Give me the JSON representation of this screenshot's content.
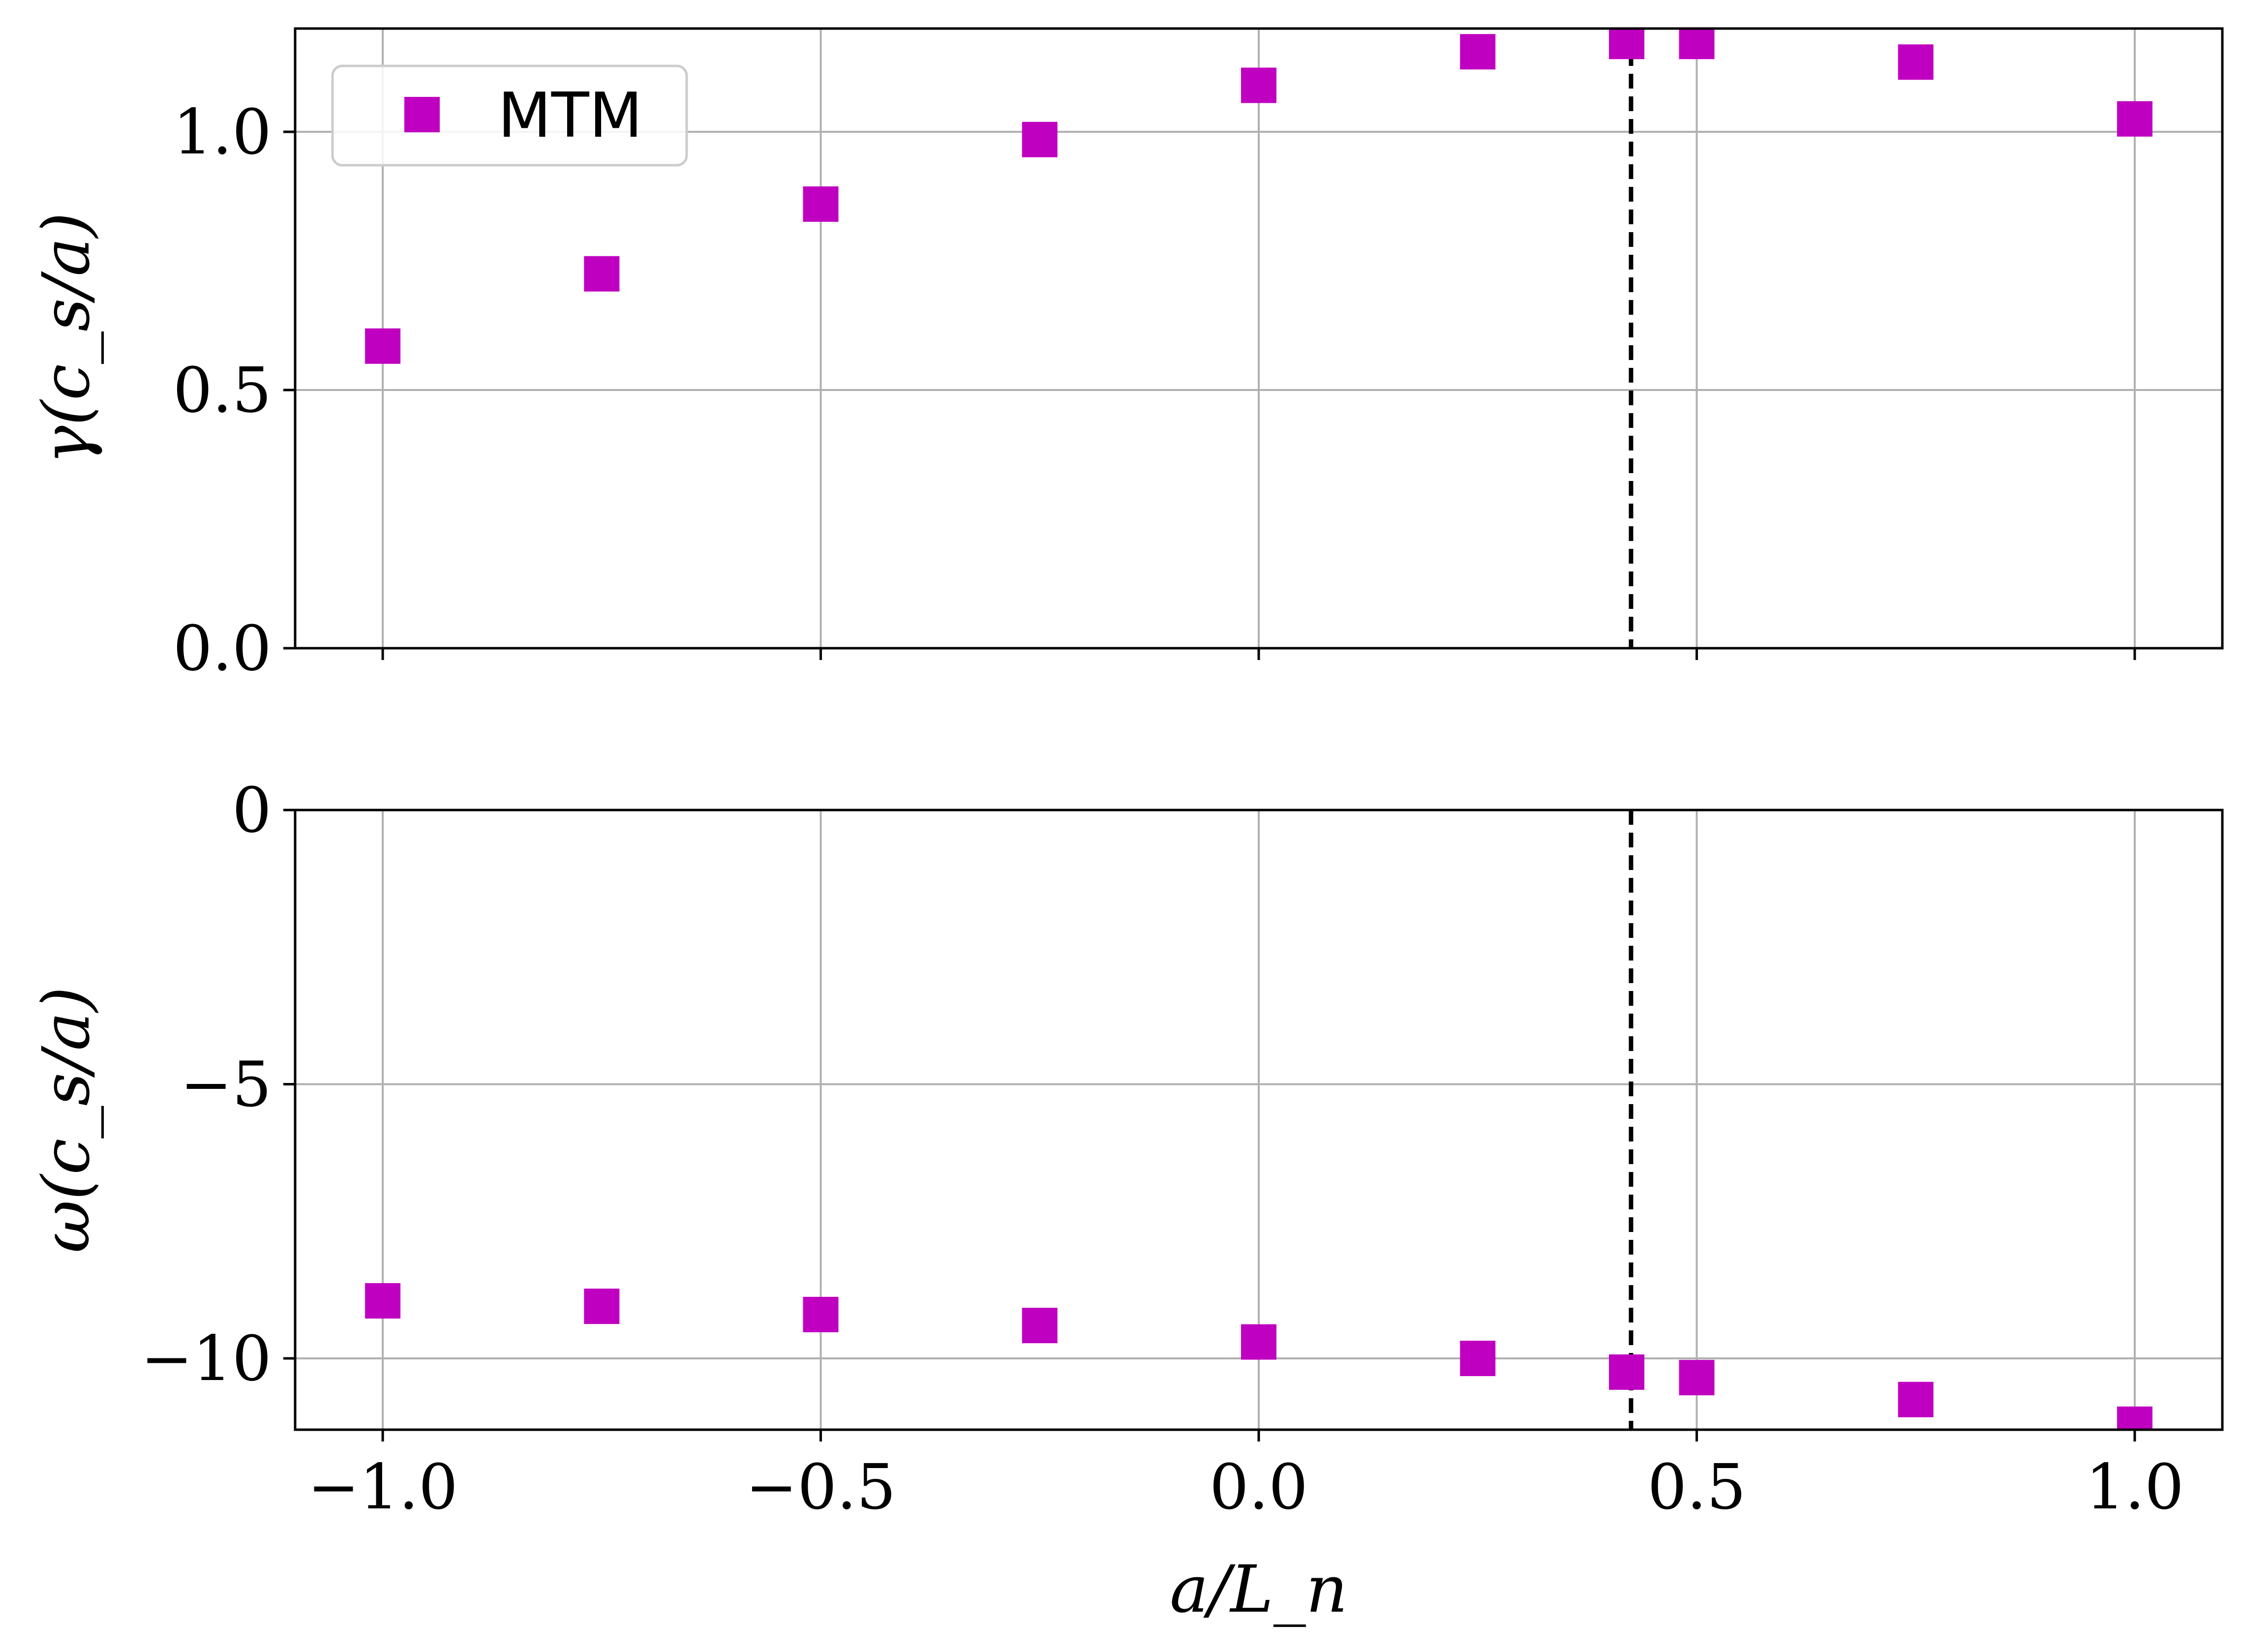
{
  "chart_data": [
    {
      "type": "scatter",
      "panel": "top",
      "xlabel": "",
      "ylabel": "γ(c_s/a)",
      "xlim": [
        -1.1,
        1.1
      ],
      "ylim": [
        0.0,
        1.2
      ],
      "xticks": [
        -1.0,
        -0.5,
        0.0,
        0.5,
        1.0
      ],
      "yticks": [
        0.0,
        0.5,
        1.0
      ],
      "ytick_labels": [
        "0.0",
        "0.5",
        "1.0"
      ],
      "grid": true,
      "legend_position": "top-left",
      "vline": {
        "x": 0.425,
        "style": "dashed",
        "color": "#000000"
      },
      "series": [
        {
          "name": "MTM",
          "marker": "square",
          "color": "#c000c0",
          "x": [
            -1.0,
            -0.75,
            -0.5,
            -0.25,
            0.0,
            0.25,
            0.42,
            0.5,
            0.75,
            1.0
          ],
          "y": [
            0.585,
            0.725,
            0.86,
            0.985,
            1.09,
            1.155,
            1.175,
            1.175,
            1.135,
            1.025
          ]
        }
      ]
    },
    {
      "type": "scatter",
      "panel": "bottom",
      "xlabel": "a/L_n",
      "ylabel": "ω(c_s/a)",
      "xlim": [
        -1.1,
        1.1
      ],
      "ylim": [
        -11.3,
        0.0
      ],
      "xticks": [
        -1.0,
        -0.5,
        0.0,
        0.5,
        1.0
      ],
      "xtick_labels": [
        "−1.0",
        "−0.5",
        "0.0",
        "0.5",
        "1.0"
      ],
      "yticks": [
        0,
        -5,
        -10
      ],
      "ytick_labels": [
        "0",
        "−5",
        "−10"
      ],
      "grid": true,
      "vline": {
        "x": 0.425,
        "style": "dashed",
        "color": "#000000"
      },
      "series": [
        {
          "marker": "square",
          "color": "#c000c0",
          "x": [
            -1.0,
            -0.75,
            -0.5,
            -0.25,
            0.0,
            0.25,
            0.42,
            0.5,
            0.75,
            1.0
          ],
          "y": [
            -8.95,
            -9.05,
            -9.2,
            -9.4,
            -9.7,
            -10.0,
            -10.25,
            -10.35,
            -10.75,
            -11.2
          ]
        }
      ]
    }
  ]
}
